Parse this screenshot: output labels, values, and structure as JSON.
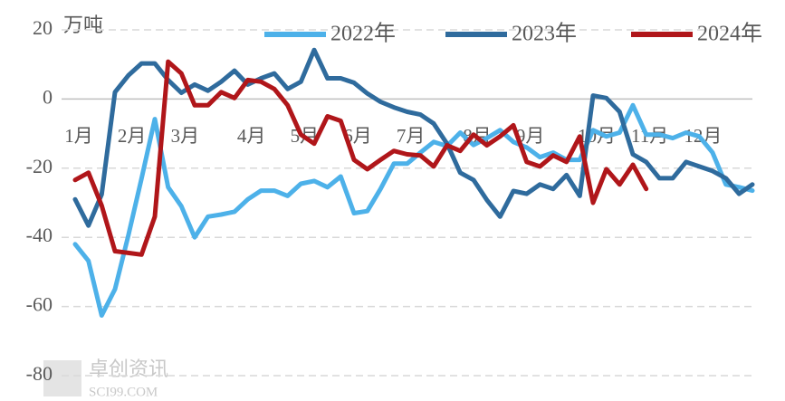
{
  "chart_data": {
    "type": "line",
    "y_unit": "万吨",
    "categories": [
      "1月",
      null,
      null,
      null,
      "2月",
      null,
      null,
      null,
      "3月",
      null,
      null,
      null,
      null,
      "4月",
      null,
      null,
      null,
      "5月",
      null,
      null,
      null,
      "6月",
      null,
      null,
      null,
      "7月",
      null,
      null,
      null,
      null,
      "8月",
      null,
      null,
      null,
      "9月",
      null,
      null,
      null,
      null,
      "10月",
      null,
      null,
      null,
      "11月",
      null,
      null,
      null,
      "12月",
      null,
      null,
      null,
      null
    ],
    "series": [
      {
        "name": "2022年",
        "color": "#4db1e9",
        "values": [
          -42,
          -46.8,
          -62.6,
          -55,
          -39.5,
          -23,
          -5.8,
          -25.5,
          -31,
          -40,
          -34,
          -33.4,
          -32.6,
          -29,
          -26.5,
          -26.5,
          -28,
          -24.5,
          -23.7,
          -25.5,
          -22.4,
          -33,
          -32.4,
          -26,
          -18.7,
          -18.7,
          -15.5,
          -12.4,
          -13.6,
          -9.7,
          -13.3,
          -11.3,
          -9,
          -12.4,
          -14,
          -16.8,
          -15.5,
          -17.6,
          -17.6,
          -9,
          -10.8,
          -9.7,
          -1.8,
          -10.3,
          -10.3,
          -11.3,
          -9.7,
          -10.8,
          -15.5,
          -24.7,
          -25.5,
          -26.5
        ]
      },
      {
        "name": "2023年",
        "color": "#2f6b9d",
        "values": [
          -29,
          -36.6,
          -27.6,
          2,
          6.8,
          10.3,
          10.3,
          5.5,
          1.8,
          4.2,
          2.4,
          5,
          8.2,
          4.2,
          6,
          7.4,
          2.9,
          5,
          14.2,
          6,
          6,
          4.7,
          1.6,
          -0.8,
          -2.4,
          -3.7,
          -4.5,
          -7.1,
          -12.9,
          -21.3,
          -23.4,
          -29.2,
          -34,
          -26.6,
          -27.4,
          -24.7,
          -26,
          -22,
          -28,
          1,
          0.3,
          -3.7,
          -16,
          -18.2,
          -22.9,
          -22.9,
          -18.2,
          -19.5,
          -20.8,
          -22.9,
          -27.4,
          -24.7
        ]
      },
      {
        "name": "2024年",
        "color": "#b0161a",
        "values": [
          -23.4,
          -21.3,
          -30.8,
          -44,
          -44.5,
          -45,
          -34,
          10.8,
          7.4,
          -1.8,
          -1.8,
          2,
          0.3,
          5.5,
          5,
          2.9,
          -1.8,
          -10.3,
          -12.9,
          -5,
          -6.3,
          -17.6,
          -20.3,
          -17.6,
          -15,
          -16,
          -16.3,
          -19.5,
          -13.4,
          -15,
          -10.3,
          -13.4,
          -10.8,
          -7.6,
          -18.2,
          -19.5,
          -16.3,
          -18.2,
          -10.8,
          -30,
          -20.3,
          -24.7,
          -19,
          -26,
          null,
          null,
          null,
          null,
          null,
          null,
          null,
          null
        ]
      }
    ],
    "ylim": [
      -80,
      20
    ],
    "yticks": [
      -80,
      -60,
      -40,
      -20,
      0,
      20
    ],
    "grid": true,
    "legend": "top",
    "watermark": {
      "name": "卓创资讯",
      "site": "SCI99.COM"
    }
  }
}
